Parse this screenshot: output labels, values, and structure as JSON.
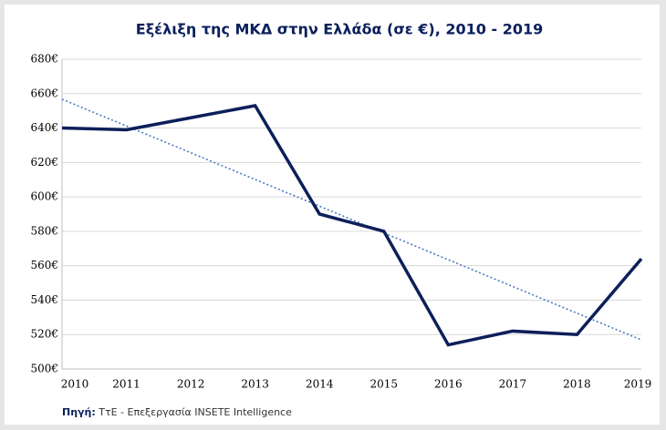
{
  "chart_data": {
    "type": "line",
    "title": "Εξέλιξη της ΜΚΔ στην Ελλάδα (σε €), 2010 - 2019",
    "categories": [
      "2010",
      "2011",
      "2012",
      "2013",
      "2014",
      "2015",
      "2016",
      "2017",
      "2018",
      "2019"
    ],
    "series": [
      {
        "color": "#0d1f5a",
        "values": [
          640,
          639,
          646,
          653,
          590,
          580,
          514,
          522,
          520,
          564
        ]
      }
    ],
    "trendline": "linear",
    "trendline_color": "#4a79c0",
    "ylim": [
      500,
      680
    ],
    "yticks": [
      {
        "value": 500,
        "label": "500€"
      },
      {
        "value": 520,
        "label": "520€"
      },
      {
        "value": 540,
        "label": "540€"
      },
      {
        "value": 560,
        "label": "560€"
      },
      {
        "value": 580,
        "label": "580€"
      },
      {
        "value": 600,
        "label": "600€"
      },
      {
        "value": 620,
        "label": "620€"
      },
      {
        "value": 640,
        "label": "640€"
      },
      {
        "value": 660,
        "label": "660€"
      },
      {
        "value": 680,
        "label": "680€"
      }
    ],
    "grid": true,
    "source_label": "Πηγή:",
    "source_text": "ΤτΕ - Επεξεργασία INSETE Intelligence"
  }
}
